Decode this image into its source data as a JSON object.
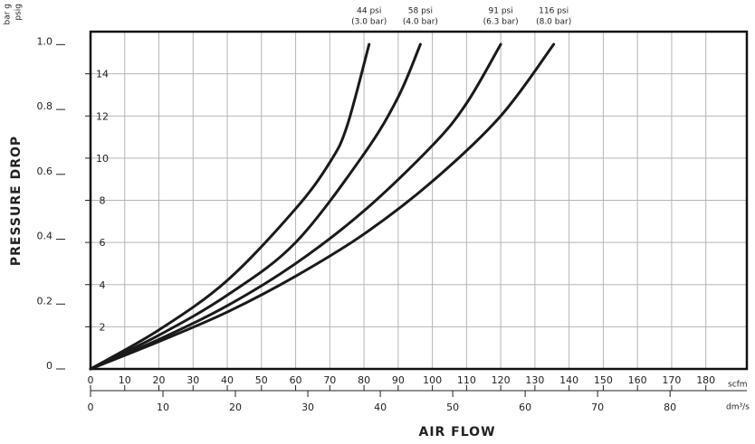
{
  "chart_data": {
    "type": "line",
    "y_title": "PRESSURE DROP",
    "x_title": "AIR FLOW",
    "y_unit": "psig",
    "y2_unit": "bar g",
    "x_unit": "scfm",
    "x2_unit": "dm³/s",
    "xlim": [
      0,
      192
    ],
    "xticks": [
      0,
      10,
      20,
      30,
      40,
      50,
      60,
      70,
      80,
      90,
      100,
      110,
      120,
      130,
      140,
      150,
      160,
      170,
      180
    ],
    "x2lim": [
      0,
      90.6
    ],
    "x2ticks": [
      0,
      10,
      20,
      30,
      40,
      50,
      60,
      70,
      80
    ],
    "ylim": [
      0,
      16
    ],
    "yticks": [
      2,
      4,
      6,
      8,
      10,
      12,
      14
    ],
    "y2lim": [
      0,
      1.04
    ],
    "y2ticks": [
      0,
      0.2,
      0.4,
      0.6,
      0.8,
      {
        "value": 1,
        "label": "1.0"
      }
    ],
    "grid": true,
    "series": [
      {
        "name": "44 psi",
        "subname": "(3.0 bar)",
        "color": "#1a1a1a",
        "x": [
          0,
          20,
          40,
          60,
          70,
          75,
          81.5
        ],
        "values": [
          0,
          1.85,
          4.2,
          7.6,
          9.8,
          11.5,
          15.4
        ]
      },
      {
        "name": "58 psi",
        "subname": "(4.0 bar)",
        "color": "#1a1a1a",
        "x": [
          0,
          20,
          40,
          60,
          80,
          90,
          96.5
        ],
        "values": [
          0,
          1.6,
          3.5,
          6.0,
          10.2,
          12.9,
          15.4
        ]
      },
      {
        "name": "91 psi",
        "subname": "(6.3 bar)",
        "color": "#1a1a1a",
        "x": [
          0,
          20,
          40,
          60,
          80,
          100,
          110,
          120
        ],
        "values": [
          0,
          1.4,
          3.0,
          5.0,
          7.5,
          10.6,
          12.6,
          15.4
        ]
      },
      {
        "name": "116 psi",
        "subname": "(8.0 bar)",
        "color": "#1a1a1a",
        "x": [
          0,
          20,
          40,
          60,
          80,
          100,
          120,
          135.5
        ],
        "values": [
          0,
          1.3,
          2.7,
          4.4,
          6.4,
          8.9,
          12.0,
          15.4
        ]
      }
    ]
  }
}
